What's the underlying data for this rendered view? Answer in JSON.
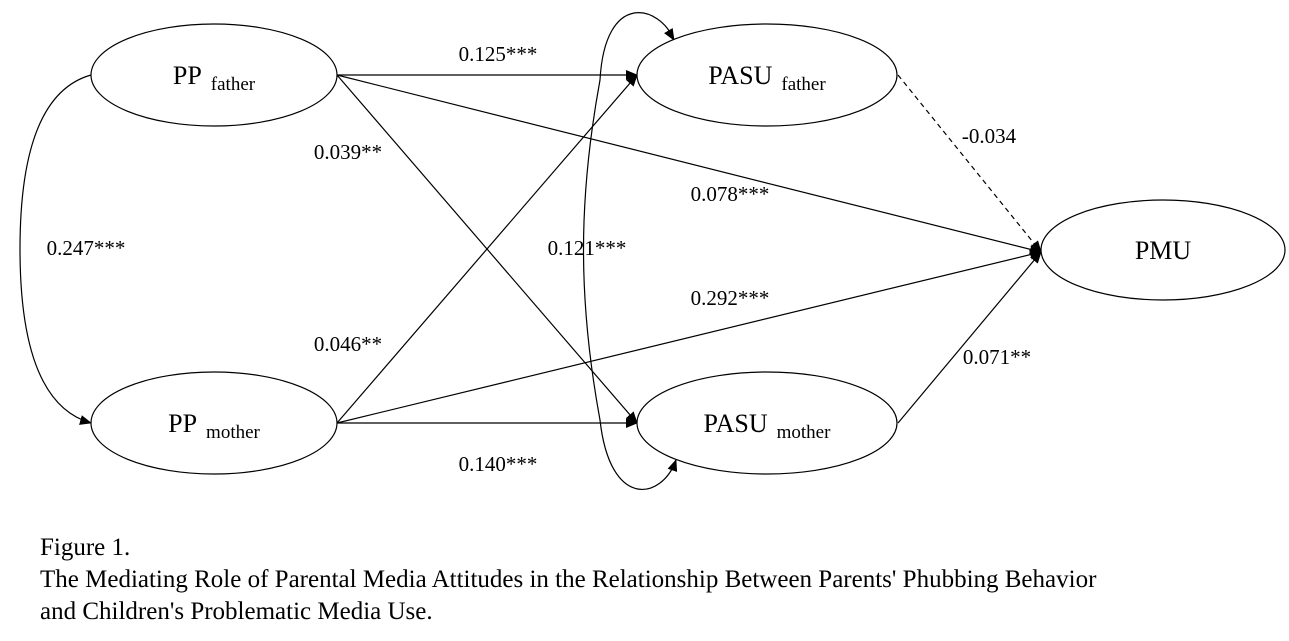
{
  "nodes": {
    "pp_father": {
      "main": "PP",
      "sub": "father"
    },
    "pp_mother": {
      "main": "PP",
      "sub": "mother"
    },
    "pasu_father": {
      "main": "PASU",
      "sub": "father"
    },
    "pasu_mother": {
      "main": "PASU",
      "sub": "mother"
    },
    "pmu": {
      "main": "PMU",
      "sub": ""
    }
  },
  "coefficients": {
    "ppf_pasuf": "0.125***",
    "ppf_pasum": "0.039**",
    "ppf_pmu": "0.078***",
    "ppm_pasuf": "0.046**",
    "ppm_pmu": "0.292***",
    "ppm_pasum": "0.140***",
    "pasuf_pmu": "-0.034",
    "pasum_pmu": "0.071**",
    "cov_pp": "0.247***",
    "cov_pasu": "0.121***"
  },
  "caption": {
    "figure_label": "Figure 1.",
    "title_line1": "The Mediating Role of Parental Media Attitudes in the Relationship Between Parents' Phubbing Behavior",
    "title_line2": "and Children's Problematic Media Use."
  }
}
